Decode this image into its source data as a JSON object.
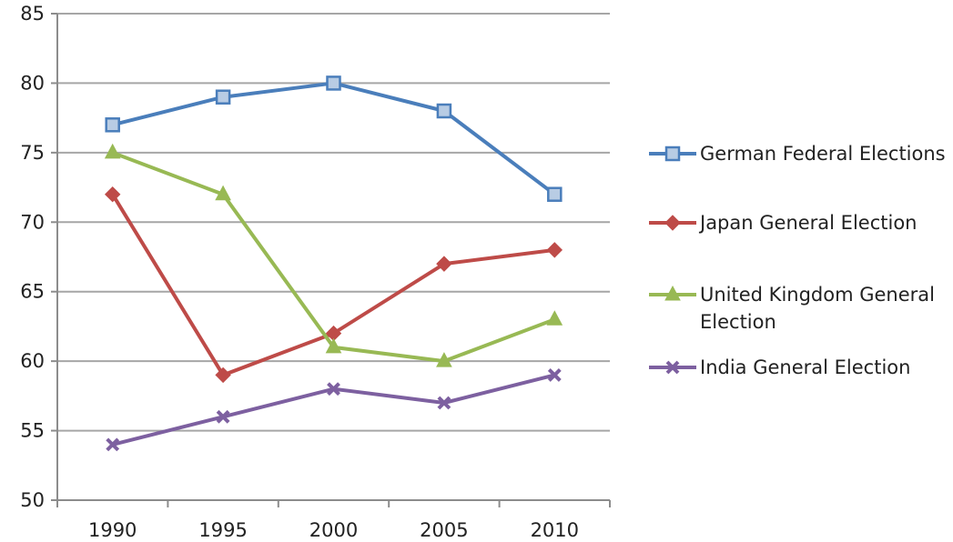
{
  "chart_data": {
    "type": "line",
    "title": "",
    "xlabel": "",
    "ylabel": "",
    "x": [
      "1990",
      "1995",
      "2000",
      "2005",
      "2010"
    ],
    "ylim": [
      50,
      85
    ],
    "yticks": [
      "50",
      "55",
      "60",
      "65",
      "70",
      "75",
      "80",
      "85"
    ],
    "grid": "horizontal",
    "legend_position": "right",
    "series": [
      {
        "name": "German Federal Elections",
        "values": [
          77,
          79,
          80,
          78,
          72
        ],
        "color": "#4a7ebb",
        "marker": "square"
      },
      {
        "name": "Japan General Election",
        "values": [
          72,
          59,
          62,
          67,
          68
        ],
        "color": "#be4b48",
        "marker": "diamond"
      },
      {
        "name": "United Kingdom General Election",
        "values": [
          75,
          72,
          61,
          60,
          63
        ],
        "color": "#98b954",
        "marker": "triangle"
      },
      {
        "name": "India General Election",
        "values": [
          54,
          56,
          58,
          57,
          59
        ],
        "color": "#7d60a0",
        "marker": "x"
      }
    ]
  }
}
